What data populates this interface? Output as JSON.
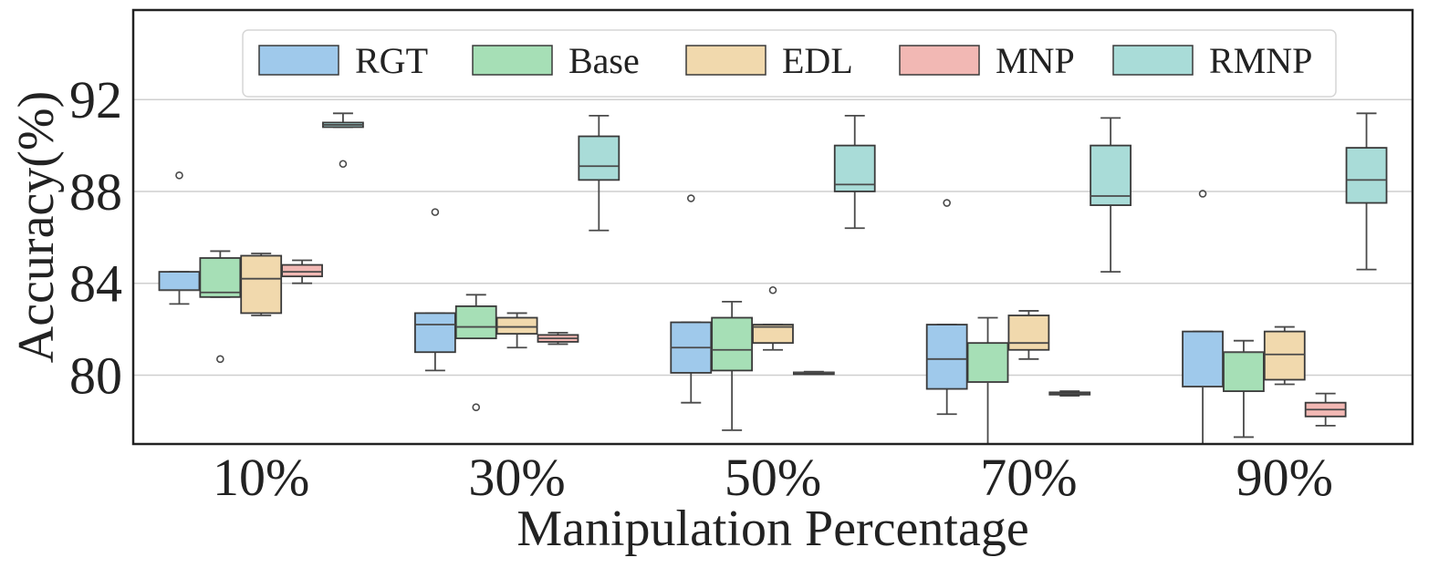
{
  "chart_data": {
    "type": "box",
    "title": "",
    "xlabel": "Manipulation Percentage",
    "ylabel": "Accuracy(%)",
    "ylim": [
      77,
      95.9
    ],
    "yticks": [
      80,
      84,
      88,
      92
    ],
    "grid": "horizontal",
    "legend_position": "top",
    "categories": [
      "10%",
      "30%",
      "50%",
      "70%",
      "90%"
    ],
    "series": [
      {
        "name": "RGT",
        "color": "#9fc9eb",
        "boxes": [
          {
            "whislo": 83.1,
            "q1": 83.7,
            "med": 83.7,
            "q3": 84.5,
            "whishi": 84.5,
            "fliers": [
              88.7
            ]
          },
          {
            "whislo": 80.2,
            "q1": 81.0,
            "med": 82.2,
            "q3": 82.7,
            "whishi": 82.7,
            "fliers": [
              87.1
            ]
          },
          {
            "whislo": 78.8,
            "q1": 80.1,
            "med": 81.2,
            "q3": 82.3,
            "whishi": 82.3,
            "fliers": [
              87.7
            ]
          },
          {
            "whislo": 78.3,
            "q1": 79.4,
            "med": 80.7,
            "q3": 82.2,
            "whishi": 82.2,
            "fliers": [
              87.5
            ]
          },
          {
            "whislo": 77.0,
            "q1": 79.5,
            "med": 79.5,
            "q3": 81.9,
            "whishi": 81.9,
            "fliers": [
              87.9
            ]
          }
        ]
      },
      {
        "name": "Base",
        "color": "#a6dfb6",
        "boxes": [
          {
            "whislo": 83.4,
            "q1": 83.4,
            "med": 83.6,
            "q3": 85.1,
            "whishi": 85.4,
            "fliers": [
              80.7
            ]
          },
          {
            "whislo": 81.6,
            "q1": 81.6,
            "med": 82.1,
            "q3": 83.0,
            "whishi": 83.5,
            "fliers": [
              78.6
            ]
          },
          {
            "whislo": 77.6,
            "q1": 80.2,
            "med": 81.1,
            "q3": 82.5,
            "whishi": 83.2,
            "fliers": []
          },
          {
            "whislo": 77.0,
            "q1": 79.7,
            "med": 79.7,
            "q3": 81.4,
            "whishi": 82.5,
            "fliers": []
          },
          {
            "whislo": 77.3,
            "q1": 79.3,
            "med": 81.0,
            "q3": 81.0,
            "whishi": 81.5,
            "fliers": []
          }
        ]
      },
      {
        "name": "EDL",
        "color": "#f1d9ad",
        "boxes": [
          {
            "whislo": 82.6,
            "q1": 82.7,
            "med": 84.2,
            "q3": 85.2,
            "whishi": 85.3,
            "fliers": []
          },
          {
            "whislo": 81.2,
            "q1": 81.8,
            "med": 82.1,
            "q3": 82.5,
            "whishi": 82.7,
            "fliers": []
          },
          {
            "whislo": 81.1,
            "q1": 81.4,
            "med": 82.1,
            "q3": 82.2,
            "whishi": 82.2,
            "fliers": [
              83.7
            ]
          },
          {
            "whislo": 80.7,
            "q1": 81.1,
            "med": 81.4,
            "q3": 82.6,
            "whishi": 82.8,
            "fliers": []
          },
          {
            "whislo": 79.6,
            "q1": 79.8,
            "med": 80.9,
            "q3": 81.9,
            "whishi": 82.1,
            "fliers": []
          }
        ]
      },
      {
        "name": "MNP",
        "color": "#f2b8b4",
        "boxes": [
          {
            "whislo": 84.0,
            "q1": 84.3,
            "med": 84.5,
            "q3": 84.8,
            "whishi": 85.0,
            "fliers": []
          },
          {
            "whislo": 81.35,
            "q1": 81.45,
            "med": 81.6,
            "q3": 81.75,
            "whishi": 81.85,
            "fliers": []
          },
          {
            "whislo": 80.05,
            "q1": 80.08,
            "med": 80.1,
            "q3": 80.12,
            "whishi": 80.15,
            "fliers": []
          },
          {
            "whislo": 79.1,
            "q1": 79.15,
            "med": 79.2,
            "q3": 79.25,
            "whishi": 79.3,
            "fliers": []
          },
          {
            "whislo": 77.8,
            "q1": 78.2,
            "med": 78.5,
            "q3": 78.8,
            "whishi": 79.2,
            "fliers": []
          }
        ]
      },
      {
        "name": "RMNP",
        "color": "#a9dcd8",
        "boxes": [
          {
            "whislo": 90.8,
            "q1": 90.8,
            "med": 90.9,
            "q3": 91.0,
            "whishi": 91.4,
            "fliers": [
              89.2
            ]
          },
          {
            "whislo": 86.3,
            "q1": 88.5,
            "med": 89.1,
            "q3": 90.4,
            "whishi": 91.3,
            "fliers": []
          },
          {
            "whislo": 86.4,
            "q1": 88.0,
            "med": 88.3,
            "q3": 90.0,
            "whishi": 91.3,
            "fliers": []
          },
          {
            "whislo": 84.5,
            "q1": 87.4,
            "med": 87.8,
            "q3": 90.0,
            "whishi": 91.2,
            "fliers": []
          },
          {
            "whislo": 84.6,
            "q1": 87.5,
            "med": 88.5,
            "q3": 89.9,
            "whishi": 91.4,
            "fliers": []
          }
        ]
      }
    ]
  }
}
